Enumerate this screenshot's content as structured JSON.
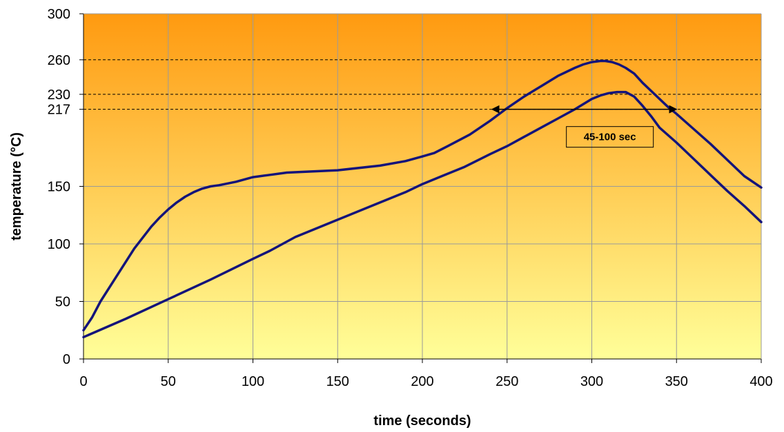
{
  "chart_data": {
    "type": "line",
    "title": "",
    "xlabel": "time (seconds)",
    "ylabel": "temperature (°C)",
    "xlim": [
      0,
      400
    ],
    "ylim": [
      0,
      300
    ],
    "x_ticks": [
      0,
      50,
      100,
      150,
      200,
      250,
      300,
      350,
      400
    ],
    "y_ticks": [
      0,
      50,
      100,
      150,
      217,
      230,
      260,
      300
    ],
    "grid": true,
    "legend": "none",
    "background_gradient": {
      "top": "#FF9A10",
      "bottom": "#FFFF99"
    },
    "reference_lines": [
      260,
      230,
      217
    ],
    "line_color": "#14147A",
    "series": [
      {
        "x": [
          0,
          5,
          10,
          20,
          30,
          40,
          45,
          50,
          55,
          60,
          65,
          70,
          75,
          80,
          90,
          100,
          110,
          120,
          150,
          175,
          190,
          200,
          207,
          215,
          228,
          240,
          250,
          260,
          270,
          280,
          290,
          295,
          300,
          305,
          308,
          312,
          316,
          320,
          325,
          330,
          335,
          340,
          345,
          350,
          360,
          370,
          380,
          390,
          400
        ],
        "y": [
          25,
          36,
          50,
          73,
          96,
          115,
          123,
          130,
          136,
          141,
          145,
          148,
          150,
          151,
          154,
          158,
          160,
          162,
          164,
          168,
          172,
          176,
          179,
          185,
          195,
          207,
          218,
          228,
          237,
          246,
          253,
          256,
          258,
          259,
          259,
          258,
          256,
          253,
          248,
          240,
          233,
          226,
          219,
          213,
          200,
          187,
          173,
          159,
          149
        ]
      },
      {
        "x": [
          0,
          25,
          50,
          75,
          100,
          110,
          125,
          150,
          175,
          190,
          200,
          210,
          225,
          240,
          250,
          260,
          270,
          280,
          290,
          300,
          305,
          310,
          315,
          320,
          325,
          330,
          335,
          340,
          350,
          360,
          370,
          380,
          390,
          400
        ],
        "y": [
          19,
          35,
          52,
          69,
          87,
          94,
          106,
          121,
          136,
          145,
          152,
          158,
          167,
          178,
          185,
          193,
          201,
          209,
          217,
          226,
          229,
          231,
          232,
          232,
          228,
          220,
          211,
          201,
          188,
          174,
          160,
          146,
          133,
          119
        ]
      }
    ],
    "annotation": {
      "text": "45-100 sec",
      "arrow_from_x": 245,
      "arrow_to_x": 350,
      "arrow_y": 217,
      "box_x": 285,
      "box_y": 193
    }
  }
}
